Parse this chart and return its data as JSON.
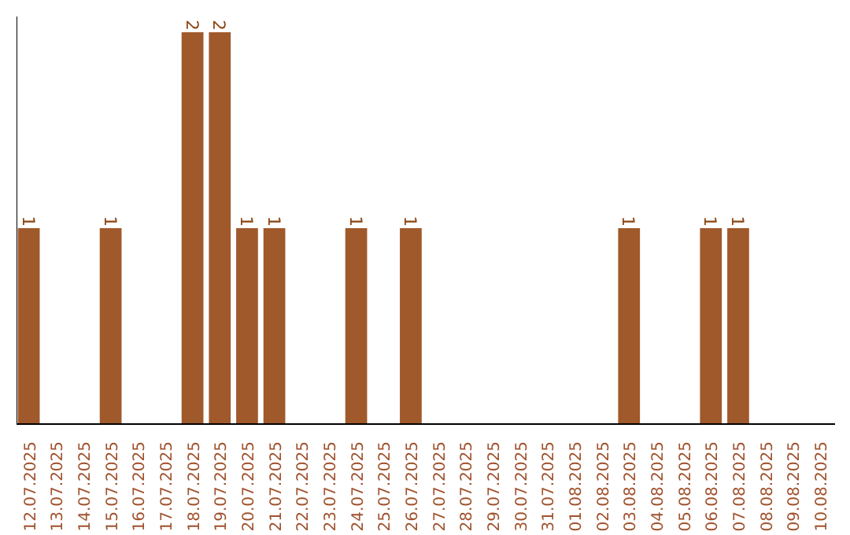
{
  "chart_data": {
    "type": "bar",
    "categories": [
      "12.07.2025",
      "13.07.2025",
      "14.07.2025",
      "15.07.2025",
      "16.07.2025",
      "17.07.2025",
      "18.07.2025",
      "19.07.2025",
      "20.07.2025",
      "21.07.2025",
      "22.07.2025",
      "23.07.2025",
      "24.07.2025",
      "25.07.2025",
      "26.07.2025",
      "27.07.2025",
      "28.07.2025",
      "29.07.2025",
      "30.07.2025",
      "31.07.2025",
      "01.08.2025",
      "02.08.2025",
      "03.08.2025",
      "04.08.2025",
      "05.08.2025",
      "06.08.2025",
      "07.08.2025",
      "08.08.2025",
      "09.08.2025",
      "10.08.2025"
    ],
    "values": [
      1,
      null,
      null,
      1,
      null,
      null,
      2,
      2,
      1,
      1,
      null,
      null,
      1,
      null,
      1,
      null,
      null,
      null,
      null,
      null,
      null,
      null,
      1,
      null,
      null,
      1,
      1,
      null,
      null,
      null
    ],
    "color": "#a0592a",
    "ylim": [
      0,
      2.08
    ],
    "data_labels": true,
    "tick_labels": "x"
  }
}
